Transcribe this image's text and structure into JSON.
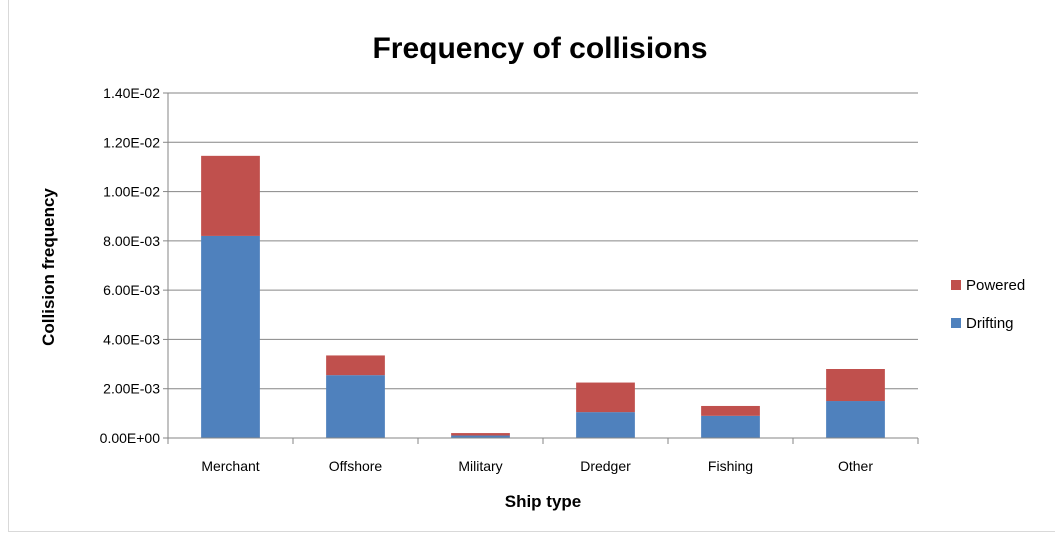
{
  "chart_data": {
    "type": "bar",
    "stacked": true,
    "title": "Frequency of collisions",
    "xlabel": "Ship type",
    "ylabel": "Collision frequency",
    "categories": [
      "Merchant",
      "Offshore",
      "Military",
      "Dredger",
      "Fishing",
      "Other"
    ],
    "series": [
      {
        "name": "Drifting",
        "color": "#4f81bd",
        "values": [
          0.0082,
          0.00255,
          0.0001,
          0.00105,
          0.0009,
          0.0015
        ]
      },
      {
        "name": "Powered",
        "color": "#c0504d",
        "values": [
          0.00325,
          0.0008,
          0.0001,
          0.0012,
          0.0004,
          0.0013
        ]
      }
    ],
    "ylim": [
      0,
      0.014
    ],
    "yticks": [
      0,
      0.002,
      0.004,
      0.006,
      0.008,
      0.01,
      0.012,
      0.014
    ],
    "ytick_labels": [
      "0.00E+00",
      "2.00E-03",
      "4.00E-03",
      "6.00E-03",
      "8.00E-03",
      "1.00E-02",
      "1.20E-02",
      "1.40E-02"
    ],
    "grid": true,
    "legend": {
      "position": "right",
      "order": [
        "Powered",
        "Drifting"
      ]
    }
  }
}
